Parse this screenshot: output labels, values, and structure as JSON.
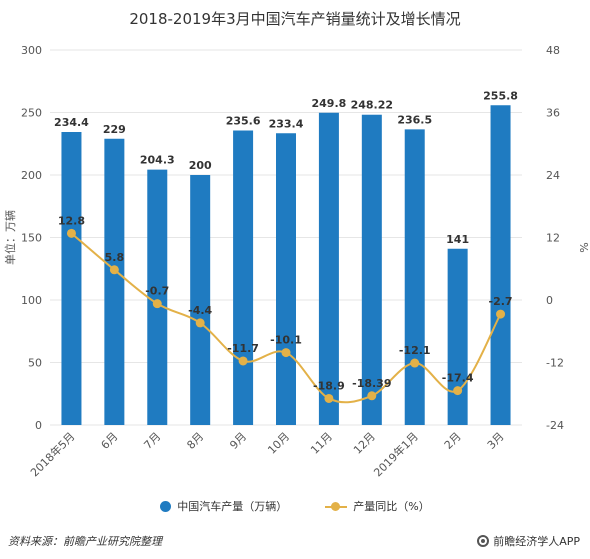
{
  "title": "2018-2019年3月中国汽车产销量统计及增长情况",
  "source": "资料来源：前瞻产业研究院整理",
  "brand": "前瞻经济学人APP",
  "colors": {
    "bar": "#1f7bc1",
    "line": "#e3b148",
    "grid": "#e6e6e6",
    "axis_text": "#555555",
    "label_text": "#333333"
  },
  "chart_data": {
    "type": "bar",
    "categories": [
      "2018年5月",
      "6月",
      "7月",
      "8月",
      "9月",
      "10月",
      "11月",
      "12月",
      "2019年1月",
      "2月",
      "3月"
    ],
    "series": [
      {
        "name": "中国汽车产量（万辆）",
        "type": "bar",
        "axis": "left",
        "values": [
          234.4,
          229,
          204.3,
          200,
          235.6,
          233.4,
          249.8,
          248.22,
          236.5,
          141,
          255.8
        ],
        "labels": [
          "234.4",
          "229",
          "204.3",
          "200",
          "235.6",
          "233.4",
          "249.8",
          "248.22",
          "236.5",
          "141",
          "255.8"
        ]
      },
      {
        "name": "产量同比（%）",
        "type": "line",
        "axis": "right",
        "values": [
          12.8,
          5.8,
          -0.7,
          -4.4,
          -11.7,
          -10.1,
          -18.9,
          -18.39,
          -12.1,
          -17.4,
          -2.7
        ],
        "labels": [
          "12.8",
          "5.8",
          "-0.7",
          "-4.4",
          "-11.7",
          "-10.1",
          "-18.9",
          "-18.39",
          "-12.1",
          "-17.4",
          "-2.7"
        ]
      }
    ],
    "ylabel": "单位：万辆",
    "ylabel_right": "%",
    "ylim": [
      0,
      300
    ],
    "yticks": [
      "0",
      "50",
      "100",
      "150",
      "200",
      "250",
      "300"
    ],
    "ylim_right": [
      -24,
      48
    ],
    "yticks_right": [
      "-24",
      "-12",
      "0",
      "12",
      "24",
      "36",
      "48"
    ],
    "grid": true,
    "legend": "bottom"
  }
}
